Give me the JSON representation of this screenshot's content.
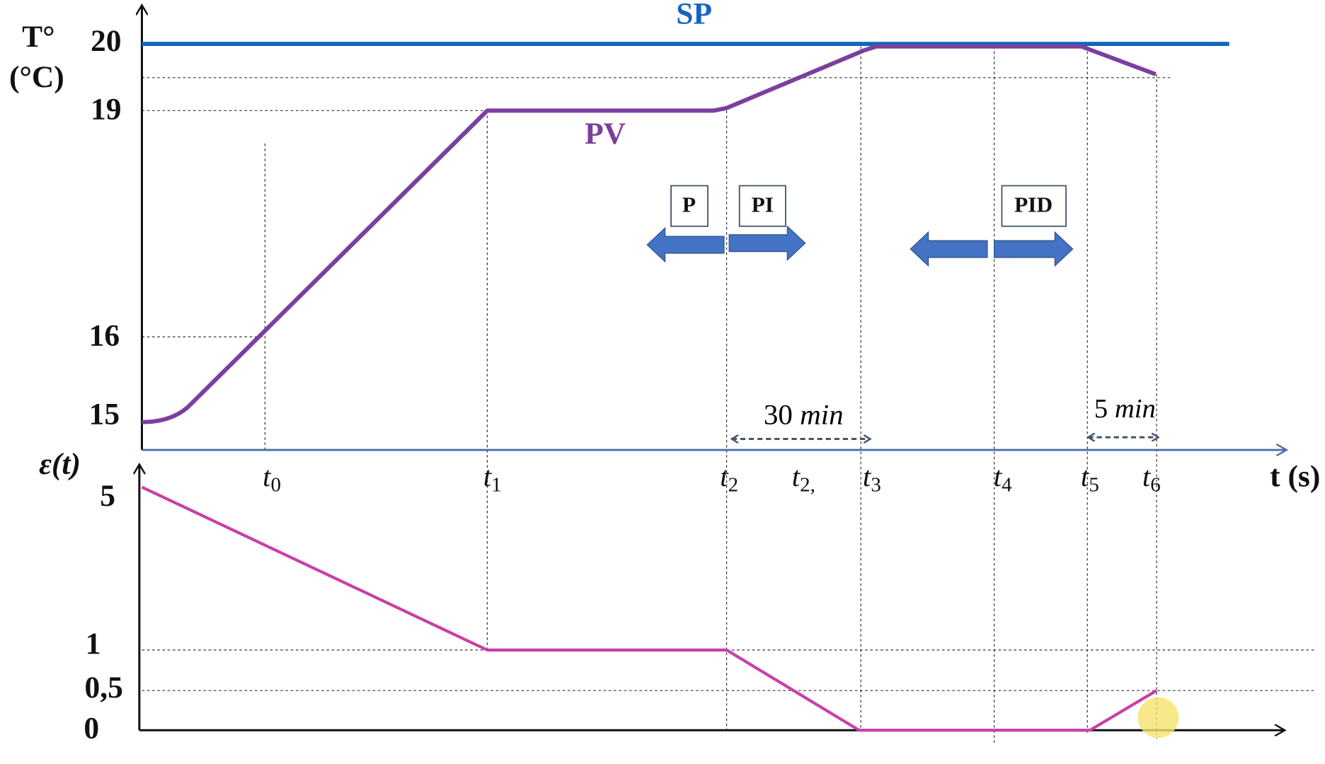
{
  "top_axis": {
    "y_label": "T°",
    "y_unit": "(°C)",
    "ticks": [
      "20",
      "19",
      "16",
      "15"
    ]
  },
  "setpoint": "SP",
  "process_value": "PV",
  "modes": [
    "P",
    "PI",
    "PID"
  ],
  "durations": [
    {
      "number": "30",
      "unit": "min"
    },
    {
      "number": "5",
      "unit": "min"
    }
  ],
  "time_axis": {
    "label": "t (s)",
    "ticks": [
      {
        "base": "t",
        "sub": "0"
      },
      {
        "base": "t",
        "sub": "1"
      },
      {
        "base": "t",
        "sub": "2"
      },
      {
        "base": "t",
        "sub": "2,"
      },
      {
        "base": "t",
        "sub": "3"
      },
      {
        "base": "t",
        "sub": "4"
      },
      {
        "base": "t",
        "sub": "5"
      },
      {
        "base": "t",
        "sub": "6"
      }
    ]
  },
  "error_axis": {
    "label": "ε(t)",
    "ticks": [
      "5",
      "1",
      "0,5",
      "0"
    ]
  }
}
